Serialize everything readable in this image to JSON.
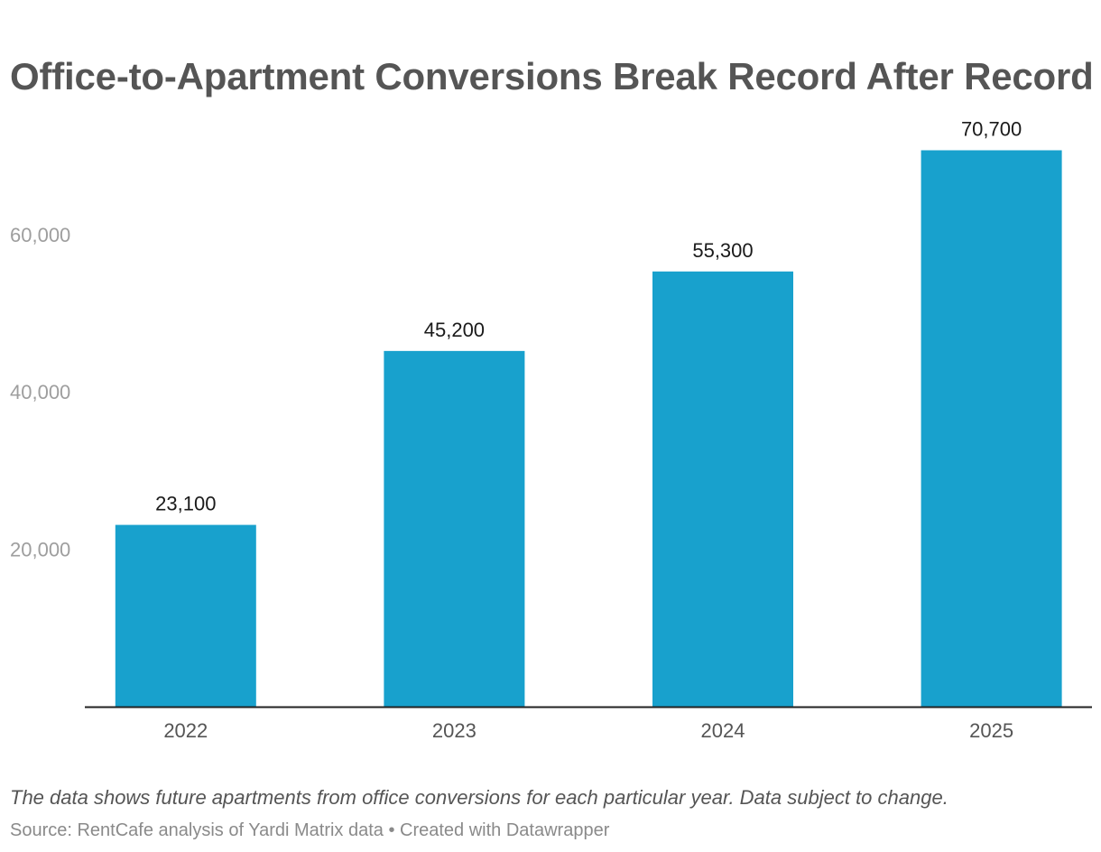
{
  "colors": {
    "bar": "#18a1cd",
    "axis": "#222222",
    "title": "#555555",
    "tick": "#9e9e9e",
    "label": "#1a1a1a"
  },
  "chart_data": {
    "type": "bar",
    "title": "Office-to-Apartment Conversions Break Record After Record",
    "categories": [
      "2022",
      "2023",
      "2024",
      "2025"
    ],
    "values": [
      23100,
      45200,
      55300,
      70700
    ],
    "value_labels": [
      "23,100",
      "45,200",
      "55,300",
      "70,700"
    ],
    "yticks": [
      20000,
      40000,
      60000
    ],
    "ytick_labels": [
      "20,000",
      "40,000",
      "60,000"
    ],
    "ylim": [
      0,
      80000
    ],
    "grid": false,
    "xlabel": "",
    "ylabel": ""
  },
  "note": "The data shows future apartments from office conversions for each particular year. Data subject to change.",
  "source": "Source: RentCafe analysis of Yardi Matrix data • Created with Datawrapper"
}
